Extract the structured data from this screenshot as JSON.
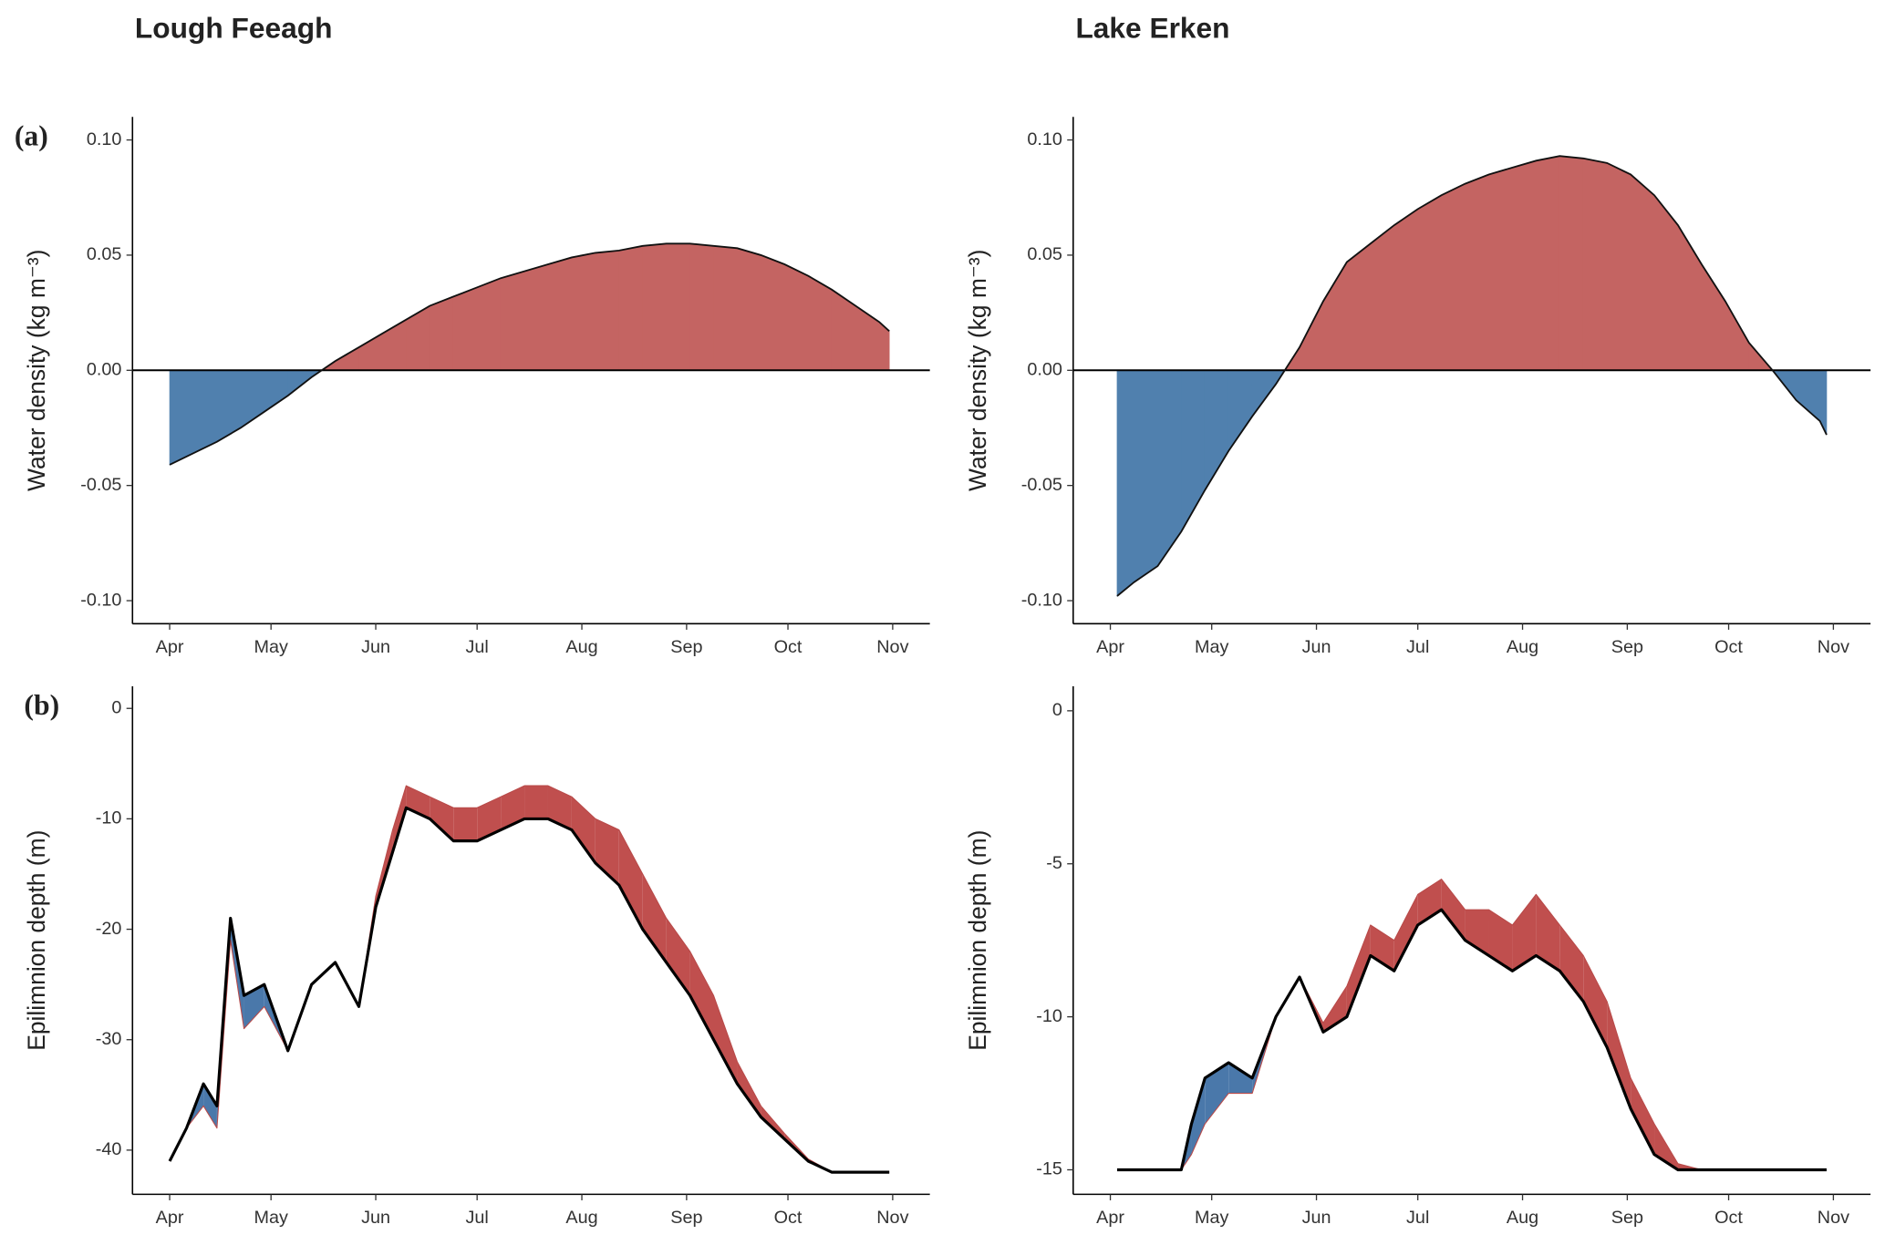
{
  "chart_data": [
    {
      "type": "area",
      "title": "Lough Feeagh",
      "panel_label": "(a)",
      "y_label": "Water density (kg m⁻³)",
      "colors": {
        "positive": "#c46462",
        "negative": "#5080ae"
      },
      "x": [
        0,
        7,
        14,
        21,
        28,
        35,
        42,
        49,
        56,
        63,
        70,
        77,
        84,
        91,
        98,
        105,
        112,
        119,
        126,
        133,
        140,
        147,
        154,
        161,
        168,
        175,
        182,
        189,
        196,
        203,
        210,
        213
      ],
      "values": [
        -0.041,
        -0.036,
        -0.031,
        -0.025,
        -0.018,
        -0.011,
        -0.003,
        0.004,
        0.01,
        0.016,
        0.022,
        0.028,
        0.032,
        0.036,
        0.04,
        0.043,
        0.046,
        0.049,
        0.051,
        0.052,
        0.054,
        0.055,
        0.055,
        0.054,
        0.053,
        0.05,
        0.046,
        0.041,
        0.035,
        0.028,
        0.021,
        0.017
      ],
      "xlim": [
        -11,
        225
      ],
      "xticks": [
        {
          "value": 0,
          "label": "Apr"
        },
        {
          "value": 30,
          "label": "May"
        },
        {
          "value": 61,
          "label": "Jun"
        },
        {
          "value": 91,
          "label": "Jul"
        },
        {
          "value": 122,
          "label": "Aug"
        },
        {
          "value": 153,
          "label": "Sep"
        },
        {
          "value": 183,
          "label": "Oct"
        },
        {
          "value": 214,
          "label": "Nov"
        }
      ],
      "ylim": [
        -0.11,
        0.11
      ],
      "yticks": [
        {
          "value": 0.1,
          "label": "0.10"
        },
        {
          "value": 0.05,
          "label": "0.05"
        },
        {
          "value": 0,
          "label": "0.00"
        },
        {
          "value": -0.05,
          "label": "-0.05"
        },
        {
          "value": -0.1,
          "label": "-0.10"
        }
      ]
    },
    {
      "type": "area",
      "title": "Lake Erken",
      "y_label": "Water density (kg m⁻³)",
      "colors": {
        "positive": "#c46462",
        "negative": "#5080ae"
      },
      "x": [
        2,
        7,
        14,
        21,
        28,
        35,
        42,
        49,
        56,
        63,
        70,
        77,
        84,
        91,
        98,
        105,
        112,
        119,
        126,
        133,
        140,
        147,
        154,
        161,
        168,
        175,
        182,
        189,
        196,
        203,
        210,
        212
      ],
      "values": [
        -0.098,
        -0.092,
        -0.085,
        -0.07,
        -0.052,
        -0.035,
        -0.02,
        -0.006,
        0.01,
        0.03,
        0.047,
        0.055,
        0.063,
        0.07,
        0.076,
        0.081,
        0.085,
        0.088,
        0.091,
        0.093,
        0.092,
        0.09,
        0.085,
        0.076,
        0.063,
        0.046,
        0.03,
        0.012,
        0.0,
        -0.013,
        -0.022,
        -0.028
      ],
      "xlim": [
        -11,
        225
      ],
      "xticks": [
        {
          "value": 0,
          "label": "Apr"
        },
        {
          "value": 30,
          "label": "May"
        },
        {
          "value": 61,
          "label": "Jun"
        },
        {
          "value": 91,
          "label": "Jul"
        },
        {
          "value": 122,
          "label": "Aug"
        },
        {
          "value": 153,
          "label": "Sep"
        },
        {
          "value": 183,
          "label": "Oct"
        },
        {
          "value": 214,
          "label": "Nov"
        }
      ],
      "ylim": [
        -0.11,
        0.11
      ],
      "yticks": [
        {
          "value": 0.1,
          "label": "0.10"
        },
        {
          "value": 0.05,
          "label": "0.05"
        },
        {
          "value": 0,
          "label": "0.00"
        },
        {
          "value": -0.05,
          "label": "-0.05"
        },
        {
          "value": -0.1,
          "label": "-0.10"
        }
      ]
    },
    {
      "type": "line",
      "panel_label": "(b)",
      "y_label": "Epilimnion depth (m)",
      "colors": {
        "above": "#c04f4e",
        "below": "#4a78aa"
      },
      "x": [
        0,
        5,
        10,
        14,
        18,
        22,
        28,
        35,
        42,
        49,
        56,
        61,
        66,
        70,
        77,
        84,
        91,
        98,
        105,
        112,
        119,
        126,
        133,
        140,
        147,
        154,
        161,
        168,
        175,
        182,
        189,
        196,
        213
      ],
      "series": [
        {
          "color": "#000000",
          "values": [
            -41,
            -38,
            -34,
            -36,
            -19,
            -26,
            -25,
            -31,
            -25,
            -23,
            -27,
            -18,
            -13,
            -9,
            -10,
            -12,
            -12,
            -11,
            -10,
            -10,
            -11,
            -14,
            -16,
            -20,
            -23,
            -26,
            -30,
            -34,
            -37,
            -39,
            -41,
            -42,
            -42
          ]
        },
        {
          "color": "#b84a49",
          "values": [
            -41,
            -38,
            -36,
            -38,
            -21,
            -29,
            -27,
            -31,
            -25,
            -23,
            -27,
            -17,
            -11,
            -7,
            -8,
            -9,
            -9,
            -8,
            -7,
            -7,
            -8,
            -10,
            -11,
            -15,
            -19,
            -22,
            -26,
            -32,
            -36,
            -38.5,
            -40.8,
            -42,
            -42
          ]
        }
      ],
      "xlim": [
        -11,
        225
      ],
      "xticks": [
        {
          "value": 0,
          "label": "Apr"
        },
        {
          "value": 30,
          "label": "May"
        },
        {
          "value": 61,
          "label": "Jun"
        },
        {
          "value": 91,
          "label": "Jul"
        },
        {
          "value": 122,
          "label": "Aug"
        },
        {
          "value": 153,
          "label": "Sep"
        },
        {
          "value": 183,
          "label": "Oct"
        },
        {
          "value": 214,
          "label": "Nov"
        }
      ],
      "ylim": [
        -44,
        2
      ],
      "yticks": [
        0,
        -10,
        -20,
        -30,
        -40
      ]
    },
    {
      "type": "line",
      "y_label": "Epilimnion depth (m)",
      "colors": {
        "above": "#c04f4e",
        "below": "#4a78aa"
      },
      "x": [
        2,
        21,
        24,
        28,
        35,
        42,
        49,
        56,
        63,
        70,
        77,
        84,
        91,
        98,
        105,
        112,
        119,
        126,
        133,
        140,
        147,
        154,
        161,
        168,
        175,
        212
      ],
      "series": [
        {
          "color": "#000000",
          "values": [
            -15,
            -15,
            -13.5,
            -12,
            -11.5,
            -12,
            -10,
            -8.7,
            -10.5,
            -10,
            -8,
            -8.5,
            -7,
            -6.5,
            -7.5,
            -8,
            -8.5,
            -8,
            -8.5,
            -9.5,
            -11,
            -13,
            -14.5,
            -15,
            -15,
            -15
          ]
        },
        {
          "color": "#b84a49",
          "values": [
            -15,
            -15,
            -14.5,
            -13.5,
            -12.5,
            -12.5,
            -10,
            -8.7,
            -10.2,
            -9,
            -7,
            -7.5,
            -6,
            -5.5,
            -6.5,
            -6.5,
            -7,
            -6,
            -7,
            -8,
            -9.5,
            -12,
            -13.5,
            -14.8,
            -15,
            -15
          ]
        }
      ],
      "xlim": [
        -11,
        225
      ],
      "xticks": [
        {
          "value": 0,
          "label": "Apr"
        },
        {
          "value": 30,
          "label": "May"
        },
        {
          "value": 61,
          "label": "Jun"
        },
        {
          "value": 91,
          "label": "Jul"
        },
        {
          "value": 122,
          "label": "Aug"
        },
        {
          "value": 153,
          "label": "Sep"
        },
        {
          "value": 183,
          "label": "Oct"
        },
        {
          "value": 214,
          "label": "Nov"
        }
      ],
      "ylim": [
        -15.8,
        0.8
      ],
      "yticks": [
        0,
        -5,
        -10,
        -15
      ]
    }
  ]
}
